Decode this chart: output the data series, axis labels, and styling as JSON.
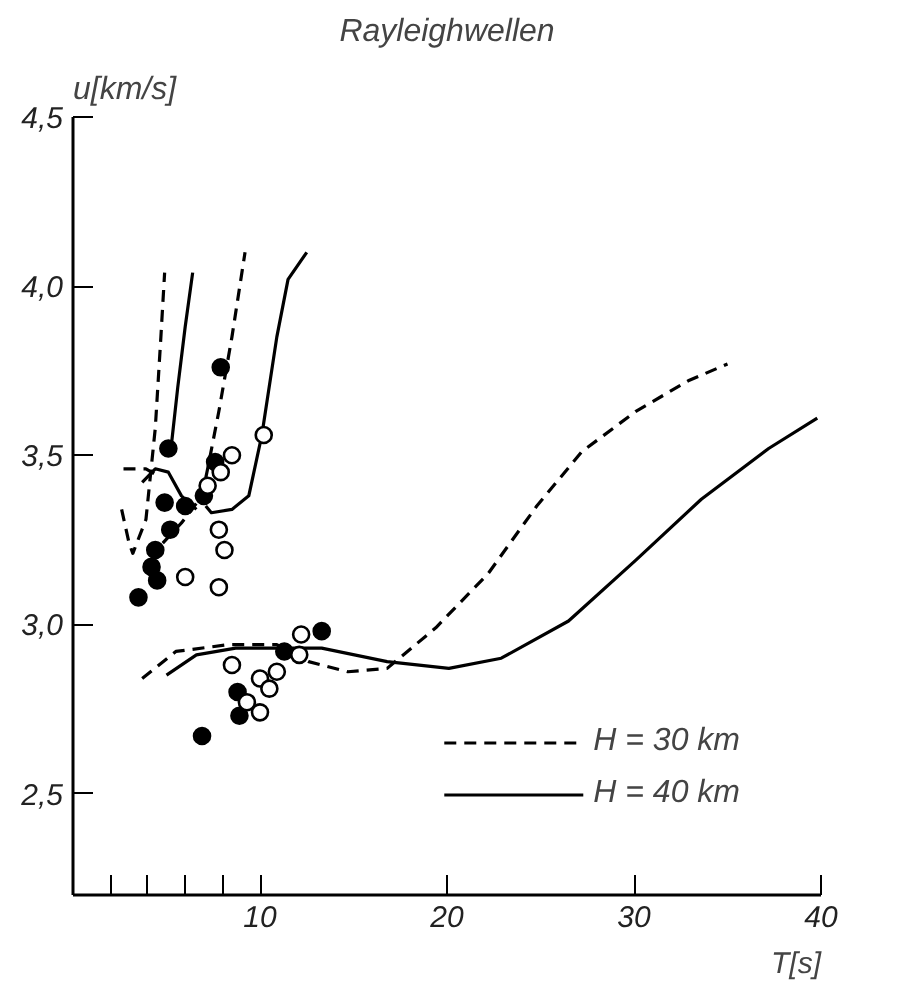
{
  "chart_data": {
    "type": "line",
    "title": "Rayleighwellen",
    "xlabel": "T[s]",
    "ylabel": "u[km/s]",
    "xlim": [
      0,
      40
    ],
    "ylim": [
      2.2,
      4.5
    ],
    "xticks": [
      {
        "value": 2,
        "label": null
      },
      {
        "value": 4,
        "label": null
      },
      {
        "value": 6,
        "label": null
      },
      {
        "value": 8,
        "label": null
      },
      10,
      20,
      30,
      40
    ],
    "yticks": [
      {
        "value": 2.5,
        "label": "2,5"
      },
      {
        "value": 3.0,
        "label": "3,0"
      },
      {
        "value": 3.5,
        "label": "3,5"
      },
      {
        "value": 4.0,
        "label": "4,0"
      },
      {
        "value": 4.5,
        "label": "4,5"
      }
    ],
    "grid": false,
    "legend": "bottom right",
    "series": [
      {
        "name": "H = 30 km",
        "type": "line",
        "line_style": "dashed",
        "color": "#000000",
        "x": [
          2.6,
          3.0,
          3.2,
          3.9,
          4.4,
          4.7,
          4.9,
          null,
          2.7,
          3.9,
          4.5,
          null,
          4.8,
          5.8,
          6.9,
          7.2,
          7.8,
          8.5,
          9.2,
          null,
          3.7,
          5.5,
          8.3,
          10.9,
          12.6,
          14.7,
          16.8,
          19.4,
          22.2,
          24.8,
          27.2,
          30.1,
          32.9,
          35.0
        ],
        "values": [
          3.34,
          3.24,
          3.21,
          3.31,
          3.58,
          3.85,
          4.04,
          null,
          3.46,
          3.46,
          3.44,
          null,
          3.24,
          3.3,
          3.38,
          3.46,
          3.63,
          3.85,
          4.1,
          null,
          2.84,
          2.92,
          2.94,
          2.94,
          2.89,
          2.86,
          2.87,
          2.99,
          3.15,
          3.35,
          3.51,
          3.63,
          3.72,
          3.77
        ]
      },
      {
        "name": "H = 40 km",
        "type": "line",
        "line_style": "solid",
        "color": "#000000",
        "x": [
          3.7,
          4.4,
          5.1,
          5.8,
          6.6,
          null,
          5.2,
          5.6,
          6.0,
          6.4,
          null,
          7.1,
          7.4,
          8.5,
          9.4,
          10.1,
          10.9,
          11.5,
          12.5,
          null,
          5.0,
          6.6,
          8.7,
          11.2,
          13.3,
          16.8,
          20.1,
          22.9,
          26.5,
          30.1,
          33.6,
          37.2,
          39.8
        ],
        "values": [
          3.42,
          3.46,
          3.45,
          3.38,
          3.34,
          null,
          3.5,
          3.7,
          3.88,
          4.04,
          null,
          3.35,
          3.33,
          3.34,
          3.38,
          3.56,
          3.85,
          4.02,
          4.1,
          null,
          2.85,
          2.91,
          2.93,
          2.93,
          2.93,
          2.89,
          2.87,
          2.9,
          3.01,
          3.19,
          3.37,
          3.52,
          3.61
        ]
      },
      {
        "type": "scatter",
        "marker": "circle",
        "color": "#000000",
        "x": [
          7.9,
          5.1,
          7.6,
          4.9,
          6.0,
          7.0,
          5.2,
          4.4,
          4.2,
          4.5,
          3.5,
          13.3,
          11.3,
          8.8,
          8.9,
          6.9
        ],
        "values": [
          3.76,
          3.52,
          3.48,
          3.36,
          3.35,
          3.38,
          3.28,
          3.22,
          3.17,
          3.13,
          3.08,
          2.98,
          2.92,
          2.8,
          2.73,
          2.67
        ]
      },
      {
        "type": "scatter",
        "marker": "circle",
        "color": "#ffffff",
        "x": [
          10.2,
          8.5,
          7.9,
          7.2,
          7.8,
          8.1,
          6.0,
          7.8,
          12.2,
          12.1,
          8.5,
          10.9,
          10.0,
          10.5,
          9.3,
          10.0
        ],
        "values": [
          3.56,
          3.5,
          3.45,
          3.41,
          3.28,
          3.22,
          3.14,
          3.11,
          2.97,
          2.91,
          2.88,
          2.86,
          2.84,
          2.81,
          2.77,
          2.74
        ]
      }
    ]
  }
}
